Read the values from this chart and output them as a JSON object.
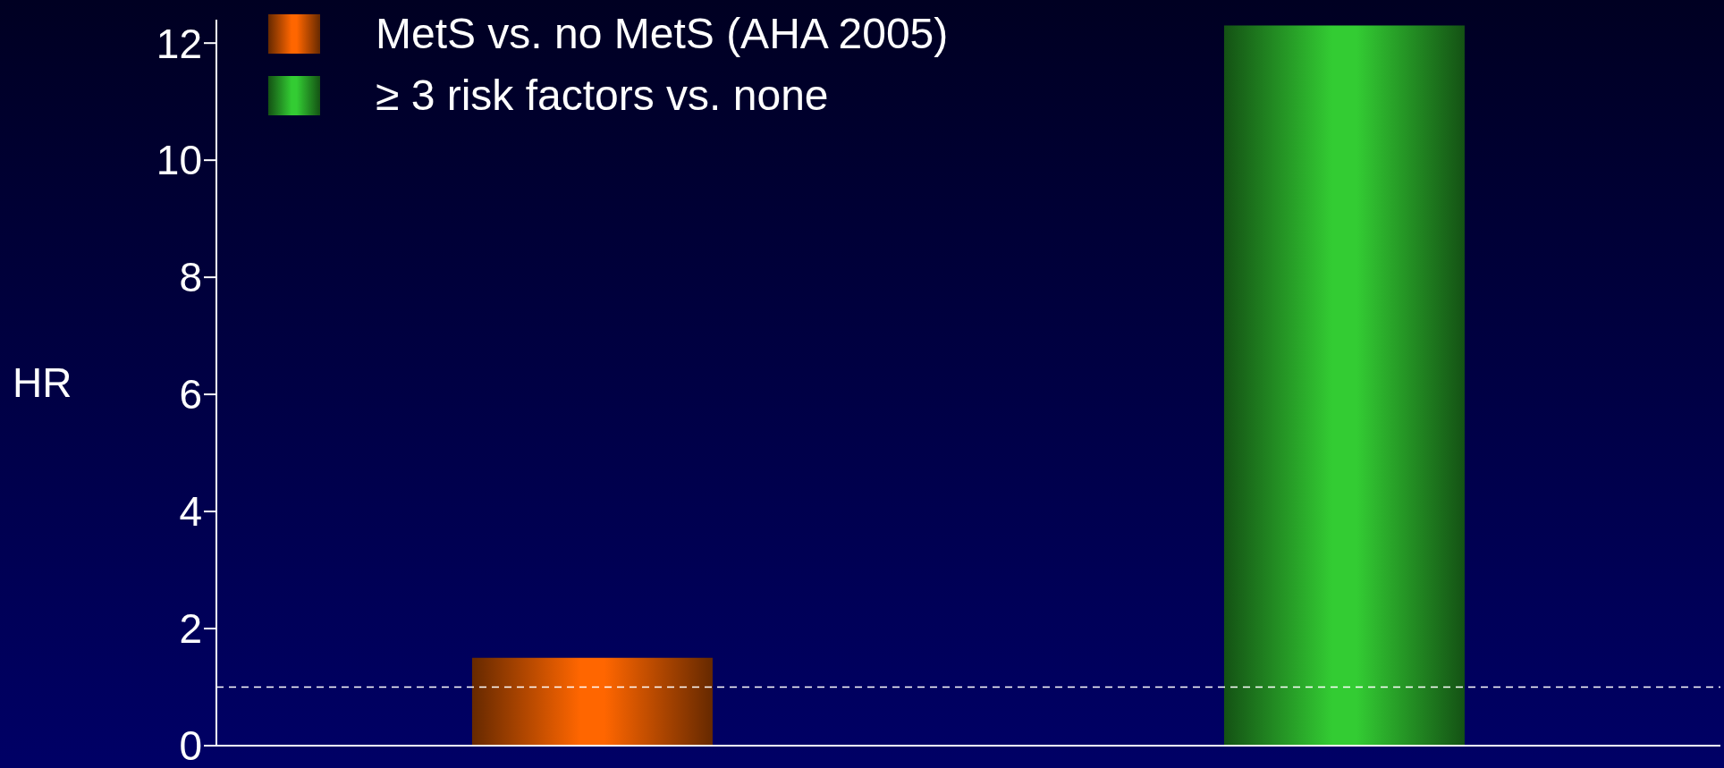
{
  "chart_data": {
    "type": "bar",
    "ylabel": "HR",
    "categories": [
      null,
      null
    ],
    "series": [
      {
        "name": "MetS vs. no MetS (AHA 2005)",
        "color": "#ff6600",
        "values": [
          1.5,
          null
        ]
      },
      {
        "name": "≥ 3 risk factors vs. none",
        "color": "#33cc33",
        "values": [
          null,
          12.3
        ]
      }
    ],
    "ylim": [
      0,
      12.4
    ],
    "yticks": [
      0,
      2,
      4,
      6,
      8,
      10,
      12
    ],
    "grid": false,
    "legend": "top left",
    "ref_lines": [
      {
        "axis": "y",
        "value": 1,
        "color": "#ffffff",
        "line_style": "dashed"
      }
    ]
  }
}
